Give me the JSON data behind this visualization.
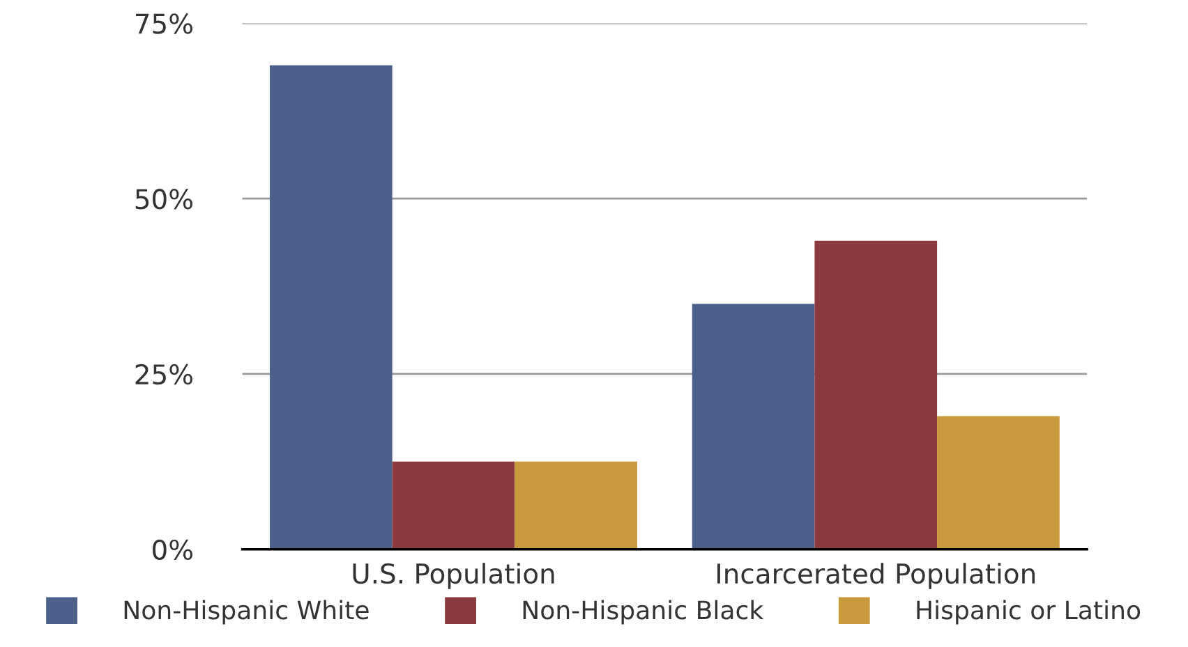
{
  "chart_data": {
    "type": "bar",
    "categories": [
      "U.S. Population",
      "Incarcerated Population"
    ],
    "series": [
      {
        "name": "Non-Hispanic White",
        "color": "#4b6189",
        "values": [
          69,
          35
        ]
      },
      {
        "name": "Non-Hispanic Black",
        "color": "#8b3b3d",
        "values": [
          12.5,
          44
        ]
      },
      {
        "name": "Hispanic or Latino",
        "color": "#c99a3c",
        "values": [
          12.5,
          19
        ]
      }
    ],
    "ylim": [
      0,
      75
    ],
    "yticks": [
      {
        "value": 0,
        "label": "0%"
      },
      {
        "value": 25,
        "label": "25%"
      },
      {
        "value": 50,
        "label": "50%"
      },
      {
        "value": 75,
        "label": "75%"
      }
    ],
    "grid": "y",
    "legend": "bottom"
  }
}
